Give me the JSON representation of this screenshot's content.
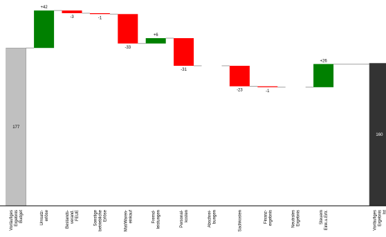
{
  "chart_data": {
    "type": "waterfall",
    "categories": [
      "Vorläufiges\nErgebnis\nBudget",
      "Umsatz-\nerlöse",
      "Bestands-\nverand.\nFEUE",
      "Sonstige\nbetriebliche\nErlöse",
      "Mat/Waren-\neinkauf",
      "Fremd-\nleistungen",
      "Personal-\nkosten",
      "Abschrei-\nbungen",
      "Sachkosten",
      "Finanz-\nergebnis",
      "Neutrales\nErgebnis",
      "Steuern\nEink.u.Ertr.",
      null,
      "Vorläufiges\nErgebnis\nIst"
    ],
    "values": [
      177,
      42,
      -3,
      -1,
      -33,
      6,
      -31,
      0,
      -23,
      -1,
      0,
      26,
      null,
      160
    ],
    "value_labels": [
      "177",
      "+42",
      "-3",
      "-1",
      "-33",
      "+6",
      "-31",
      null,
      "-23",
      "-1",
      null,
      "+26",
      null,
      "160"
    ],
    "colors": {
      "start": "#c0c0c0",
      "increase": "#008000",
      "decrease": "#ff0000",
      "end": "#333333"
    },
    "ylim": [
      0,
      230
    ]
  }
}
